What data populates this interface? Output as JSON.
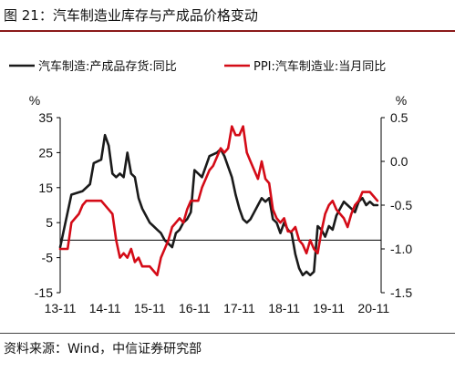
{
  "figure_title": "图 21：汽车制造业库存与产成品价格变动",
  "source_note": "资料来源：Wind，中信证券研究部",
  "chart_data": {
    "type": "line",
    "left_unit": "%",
    "right_unit": "%",
    "x_tick_labels": [
      "13-11",
      "14-11",
      "15-11",
      "16-11",
      "17-11",
      "18-11",
      "19-11",
      "20-11"
    ],
    "x_range": [
      "2013-11",
      "2021-01"
    ],
    "left_axis": {
      "ticks": [
        35,
        25,
        15,
        5,
        -5,
        -15
      ],
      "ylim": [
        -15,
        35
      ]
    },
    "right_axis": {
      "ticks": [
        "0.5",
        "0.0",
        "-0.5",
        "-1.0",
        "-1.5"
      ],
      "ylim": [
        -1.5,
        0.5
      ]
    },
    "baseline_left": 0,
    "series": [
      {
        "name": "汽车制造:产成品存货:同比",
        "axis": "left",
        "color": "#1a1a1a",
        "x": [
          "2013-11",
          "2014-02",
          "2014-05",
          "2014-07",
          "2014-08",
          "2014-10",
          "2014-11",
          "2014-12",
          "2015-01",
          "2015-02",
          "2015-03",
          "2015-04",
          "2015-05",
          "2015-06",
          "2015-07",
          "2015-08",
          "2015-09",
          "2015-10",
          "2015-11",
          "2015-12",
          "2016-01",
          "2016-02",
          "2016-03",
          "2016-04",
          "2016-05",
          "2016-06",
          "2016-07",
          "2016-08",
          "2016-09",
          "2016-10",
          "2016-11",
          "2016-12",
          "2017-01",
          "2017-02",
          "2017-03",
          "2017-05",
          "2017-06",
          "2017-07",
          "2017-08",
          "2017-09",
          "2017-10",
          "2017-11",
          "2017-12",
          "2018-01",
          "2018-02",
          "2018-03",
          "2018-04",
          "2018-05",
          "2018-06",
          "2018-07",
          "2018-08",
          "2018-09",
          "2018-10",
          "2018-11",
          "2018-12",
          "2019-01",
          "2019-02",
          "2019-03",
          "2019-04",
          "2019-05",
          "2019-06",
          "2019-07",
          "2019-08",
          "2019-09",
          "2019-10",
          "2019-11",
          "2019-12",
          "2020-01",
          "2020-02",
          "2020-03",
          "2020-04",
          "2020-05",
          "2020-06",
          "2020-07",
          "2020-08",
          "2020-09",
          "2020-10",
          "2020-11",
          "2020-12"
        ],
        "y": [
          -2,
          13,
          14,
          16,
          22,
          23,
          30,
          27,
          19,
          18,
          19,
          18,
          25,
          19,
          18,
          12,
          9,
          7,
          5,
          4,
          3,
          2,
          0,
          -1,
          -2,
          2,
          3,
          5,
          6,
          8,
          20,
          19,
          18,
          21,
          24,
          25,
          26,
          24,
          21,
          18,
          13,
          9,
          6,
          5,
          6,
          8,
          10,
          12,
          11,
          12,
          6,
          5,
          2,
          5,
          3,
          2,
          -4,
          -8,
          -10,
          -9,
          -10,
          -9,
          4,
          3,
          1,
          4,
          3,
          7,
          9,
          11,
          10,
          9,
          8,
          11,
          12,
          10,
          11,
          10,
          10
        ]
      },
      {
        "name": "PPI:汽车制造业:当月同比",
        "axis": "right",
        "color": "#d40b17",
        "x": [
          "2013-11",
          "2014-01",
          "2014-02",
          "2014-03",
          "2014-04",
          "2014-05",
          "2014-06",
          "2014-08",
          "2014-09",
          "2014-10",
          "2014-12",
          "2015-01",
          "2015-02",
          "2015-03",
          "2015-04",
          "2015-05",
          "2015-06",
          "2015-07",
          "2015-08",
          "2015-09",
          "2015-10",
          "2015-11",
          "2015-12",
          "2016-01",
          "2016-02",
          "2016-03",
          "2016-04",
          "2016-05",
          "2016-06",
          "2016-07",
          "2016-08",
          "2016-09",
          "2016-10",
          "2016-11",
          "2016-12",
          "2017-01",
          "2017-02",
          "2017-03",
          "2017-04",
          "2017-05",
          "2017-06",
          "2017-07",
          "2017-08",
          "2017-09",
          "2017-10",
          "2017-11",
          "2017-12",
          "2018-01",
          "2018-02",
          "2018-03",
          "2018-04",
          "2018-05",
          "2018-06",
          "2018-07",
          "2018-08",
          "2018-09",
          "2018-10",
          "2018-11",
          "2018-12",
          "2019-01",
          "2019-02",
          "2019-03",
          "2019-04",
          "2019-05",
          "2019-06",
          "2019-07",
          "2019-08",
          "2019-09",
          "2019-10",
          "2019-11",
          "2019-12",
          "2020-01",
          "2020-02",
          "2020-03",
          "2020-04",
          "2020-05",
          "2020-06",
          "2020-07",
          "2020-08",
          "2020-09",
          "2020-10",
          "2020-11",
          "2020-12"
        ],
        "y": [
          -1.0,
          -1.0,
          -0.7,
          -0.65,
          -0.6,
          -0.5,
          -0.45,
          -0.45,
          -0.45,
          -0.45,
          -0.55,
          -0.6,
          -0.9,
          -1.1,
          -1.05,
          -1.1,
          -1.0,
          -1.15,
          -1.1,
          -1.2,
          -1.2,
          -1.2,
          -1.25,
          -1.3,
          -1.1,
          -1.0,
          -0.9,
          -0.75,
          -0.7,
          -0.65,
          -0.7,
          -0.55,
          -0.45,
          -0.45,
          -0.45,
          -0.3,
          -0.2,
          -0.1,
          -0.05,
          0.05,
          0.15,
          0.1,
          0.15,
          0.4,
          0.3,
          0.3,
          0.4,
          0.1,
          0.0,
          -0.1,
          -0.2,
          0.0,
          -0.2,
          -0.25,
          -0.55,
          -0.65,
          -0.7,
          -0.65,
          -0.8,
          -0.8,
          -0.75,
          -0.9,
          -0.95,
          -1.05,
          -0.9,
          -1.0,
          -1.05,
          -0.8,
          -0.6,
          -0.5,
          -0.45,
          -0.55,
          -0.6,
          -0.65,
          -0.75,
          -0.6,
          -0.5,
          -0.45,
          -0.35,
          -0.35,
          -0.35,
          -0.4,
          -0.45
        ]
      }
    ]
  }
}
